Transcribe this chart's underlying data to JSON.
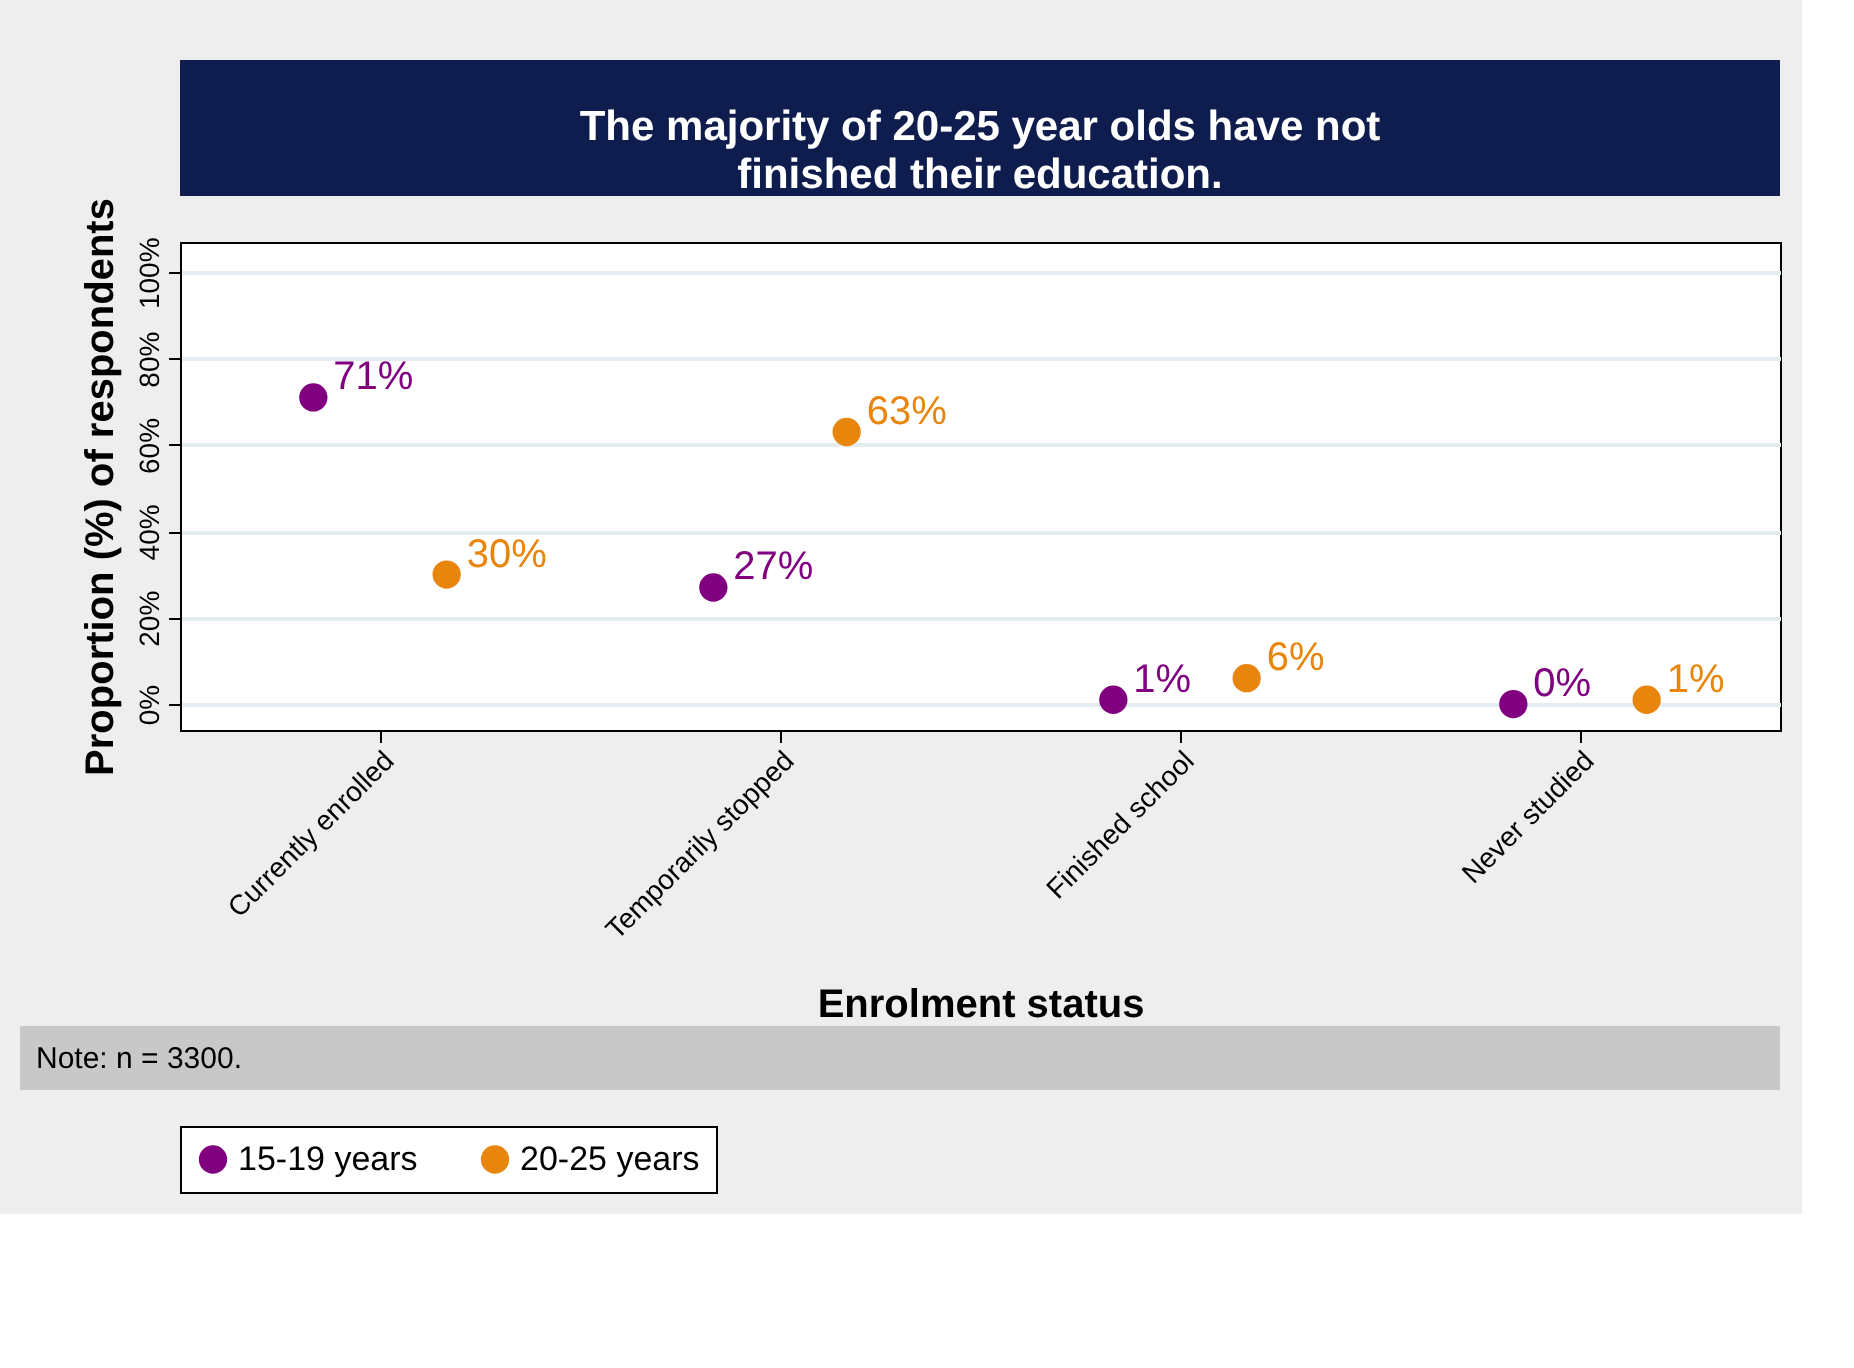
{
  "chart_data": {
    "type": "scatter",
    "title": "The majority of 20-25 year olds have not\nfinished their education.",
    "xlabel": "Enrolment status",
    "ylabel": "Proportion (%) of respondents",
    "categories": [
      "Currently enrolled",
      "Temporarily stopped",
      "Finished school",
      "Never studied"
    ],
    "series": [
      {
        "name": "15-19 years",
        "color": "#800080",
        "values": [
          71,
          27,
          1,
          0
        ],
        "value_labels": [
          "71%",
          "27%",
          "1%",
          "0%"
        ]
      },
      {
        "name": "20-25 years",
        "color": "#e8850c",
        "values": [
          30,
          63,
          6,
          1
        ],
        "value_labels": [
          "30%",
          "63%",
          "6%",
          "1%"
        ]
      }
    ],
    "ylim": [
      -6,
      107
    ],
    "yticks": [
      {
        "value": 0,
        "label": "0%"
      },
      {
        "value": 20,
        "label": "20%"
      },
      {
        "value": 40,
        "label": "40%"
      },
      {
        "value": 60,
        "label": "60%"
      },
      {
        "value": 80,
        "label": "80%"
      },
      {
        "value": 100,
        "label": "100%"
      }
    ],
    "grid": "y",
    "legend": "bottom",
    "marker": "circle",
    "annotations": [
      "Note: n = 3300."
    ]
  }
}
